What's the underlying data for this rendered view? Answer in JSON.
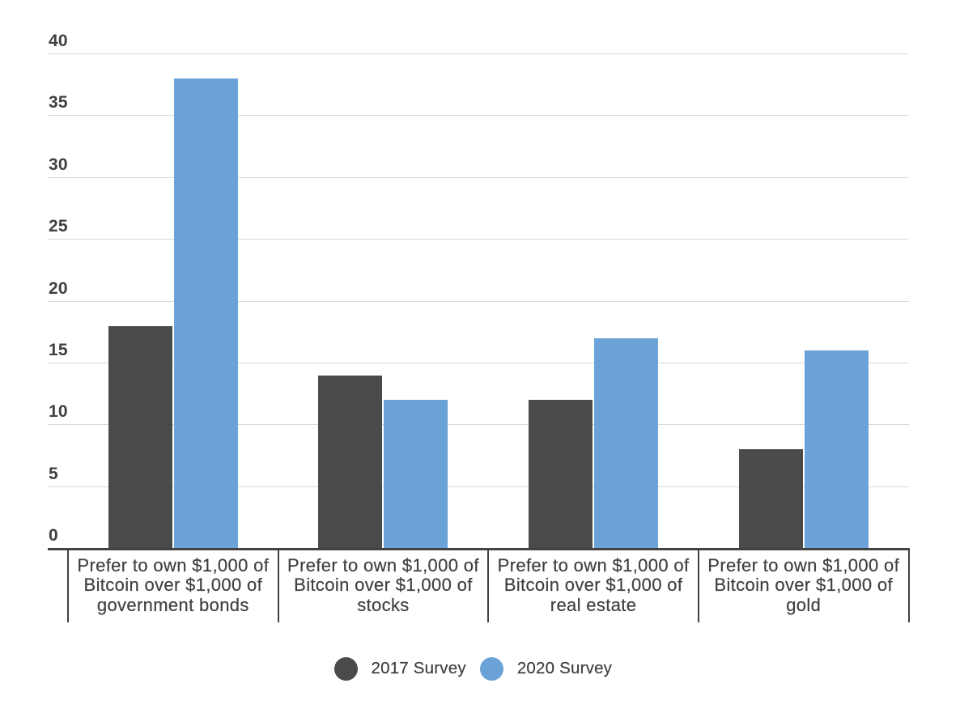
{
  "chart_data": {
    "type": "bar",
    "categories": [
      "Prefer to own $1,000 of Bitcoin over $1,000 of government bonds",
      "Prefer to own $1,000 of Bitcoin over $1,000 of stocks",
      "Prefer to own $1,000 of Bitcoin over $1,000 of real estate",
      "Prefer to own $1,000 of Bitcoin over $1,000 of gold"
    ],
    "series": [
      {
        "name": "2017 Survey",
        "color": "#4a4a4a",
        "values": [
          18,
          14,
          12,
          8
        ]
      },
      {
        "name": "2020 Survey",
        "color": "#6ba3d9",
        "values": [
          38,
          12,
          17,
          16
        ]
      }
    ],
    "title": "",
    "xlabel": "",
    "ylabel": "",
    "ylim": [
      0,
      40
    ],
    "yticks": [
      0,
      5,
      10,
      15,
      20,
      25,
      30,
      35,
      40
    ],
    "grid": true,
    "legend_position": "bottom",
    "grid_color": "#d9d9d9",
    "axis_color": "#424242",
    "text_color": "#404040",
    "background": "#ffffff"
  }
}
